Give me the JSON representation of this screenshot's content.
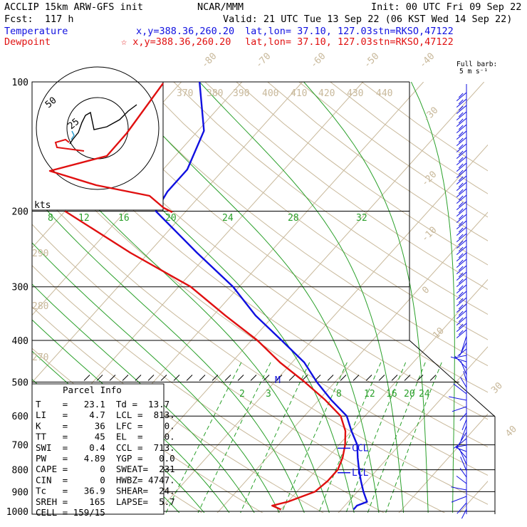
{
  "header": {
    "model": "ACCLIP 15km ARW-GFS init",
    "org": "NCAR/MMM",
    "init": "Init: 00 UTC Fri 09 Sep 22",
    "fcst": "Fcst:  117 h",
    "valid": "Valid: 21 UTC Tue 13 Sep 22 (06 KST Wed 14 Sep 22)",
    "temp_label": "Temperature",
    "temp_xy": "x,y=388.36,260.20",
    "temp_latlon": "lat,lon= 37.10, 127.03",
    "temp_stn": "stn=RKSO,47122",
    "dew_label": "Dewpoint",
    "dew_xy": "☆ x,y=388.36,260.20",
    "dew_latlon": "lat,lon= 37.10, 127.03",
    "dew_stn": "stn=RKSO,47122"
  },
  "barb_legend": {
    "line1": "Full barb:",
    "line2": "5 m s⁻¹"
  },
  "hodograph": {
    "units": "kts",
    "ring_labels": [
      "25",
      "50"
    ]
  },
  "chart_data": {
    "type": "line",
    "subtype": "skew-T log-p sounding",
    "ylabel": "",
    "y_scale": "log",
    "y_ticks": [
      100,
      200,
      300,
      400,
      500,
      600,
      700,
      800,
      900,
      1000
    ],
    "isotherm_labels": [
      "-80",
      "-70",
      "-60",
      "-50",
      "-40",
      "-30",
      "-20",
      "-10",
      "0",
      "10",
      "20",
      "30",
      "40"
    ],
    "theta_labels": [
      "370",
      "380",
      "390",
      "400",
      "410",
      "420",
      "430",
      "440",
      "290",
      "280",
      "270"
    ],
    "mixing_ratio_labels": [
      "8",
      "12",
      "16",
      "20",
      "24",
      "28",
      "32",
      "2",
      "3",
      "8",
      "12",
      "16",
      "20",
      "24"
    ],
    "series": [
      {
        "name": "Temperature",
        "color": "#1010e0",
        "points": [
          [
            100,
            -67
          ],
          [
            130,
            -59
          ],
          [
            160,
            -56
          ],
          [
            180,
            -56
          ],
          [
            200,
            -55
          ],
          [
            250,
            -42
          ],
          [
            300,
            -31
          ],
          [
            350,
            -23
          ],
          [
            400,
            -15
          ],
          [
            450,
            -8
          ],
          [
            500,
            -3
          ],
          [
            550,
            2
          ],
          [
            600,
            7
          ],
          [
            650,
            10
          ],
          [
            700,
            13
          ],
          [
            750,
            15
          ],
          [
            800,
            17
          ],
          [
            850,
            19
          ],
          [
            900,
            21
          ],
          [
            950,
            23.1
          ],
          [
            970,
            22
          ],
          [
            990,
            22
          ]
        ]
      },
      {
        "name": "Dewpoint",
        "color": "#e01010",
        "points": [
          [
            200,
            -70
          ],
          [
            250,
            -53
          ],
          [
            300,
            -38
          ],
          [
            350,
            -28
          ],
          [
            400,
            -19
          ],
          [
            450,
            -12
          ],
          [
            500,
            -5
          ],
          [
            550,
            1
          ],
          [
            600,
            6
          ],
          [
            650,
            9
          ],
          [
            700,
            11
          ],
          [
            750,
            12.5
          ],
          [
            800,
            13.5
          ],
          [
            850,
            13.5
          ],
          [
            900,
            13.0
          ],
          [
            950,
            10
          ],
          [
            970,
            8
          ],
          [
            990,
            10
          ]
        ]
      }
    ],
    "markers": [
      {
        "label": "CCL",
        "pressure": 713
      },
      {
        "label": "LCL",
        "pressure": 813
      },
      {
        "label": "M",
        "pressure": 495
      }
    ]
  },
  "parcel_info": {
    "title": "Parcel Info",
    "rows": [
      "T    =   23.1  Td =  13.7",
      "LI   =    4.7  LCL =  813.",
      "K    =     36  LFC =    0.",
      "TT   =     45  EL  =    0.",
      "SWI  =    0.4  CCL =  713.",
      "PW   =   4.89  YGP =   0.0",
      "CAPE =      0  SWEAT=  231",
      "CIN  =      0  HWBZ= 4747.",
      "Tc   =   36.9  SHEAR=  24.",
      "SREH =    165  LAPSE=  5.7",
      "CELL = 159/15"
    ]
  }
}
